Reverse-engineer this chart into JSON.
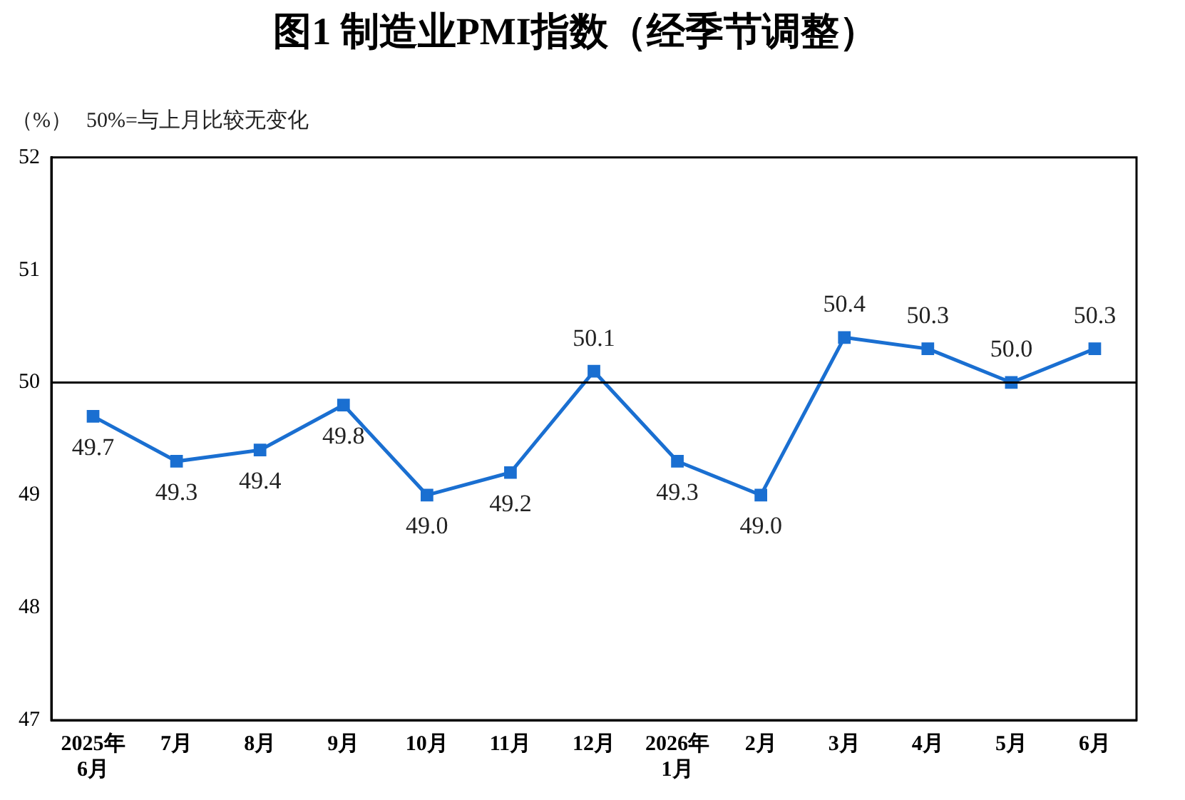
{
  "chart_data": {
    "type": "line",
    "title": "图1 制造业PMI指数（经季节调整）",
    "categories": [
      "2025年\n6月",
      "7月",
      "8月",
      "9月",
      "10月",
      "11月",
      "12月",
      "2026年\n1月",
      "2月",
      "3月",
      "4月",
      "5月",
      "6月"
    ],
    "series": [
      {
        "color": "#1a6fd1",
        "values": [
          49.7,
          49.3,
          49.4,
          49.8,
          49.0,
          49.2,
          50.1,
          49.3,
          49.0,
          50.4,
          50.3,
          50.0,
          50.3
        ],
        "value_labels": [
          "49.7",
          "49.3",
          "49.4",
          "49.8",
          "49.0",
          "49.2",
          "50.1",
          "49.3",
          "49.0",
          "50.4",
          "50.3",
          "50.0",
          "50.3"
        ]
      }
    ],
    "ylim": [
      47,
      52
    ],
    "yticks": [
      47,
      48,
      49,
      50,
      51,
      52
    ],
    "ref_lines": [
      {
        "axis": "y",
        "value": 50,
        "color": "#000000"
      }
    ],
    "annotations": [
      "（%）",
      "50%=与上月比较无变化"
    ],
    "marker": "square",
    "line_style": "solid",
    "grid": false,
    "legend": false
  }
}
